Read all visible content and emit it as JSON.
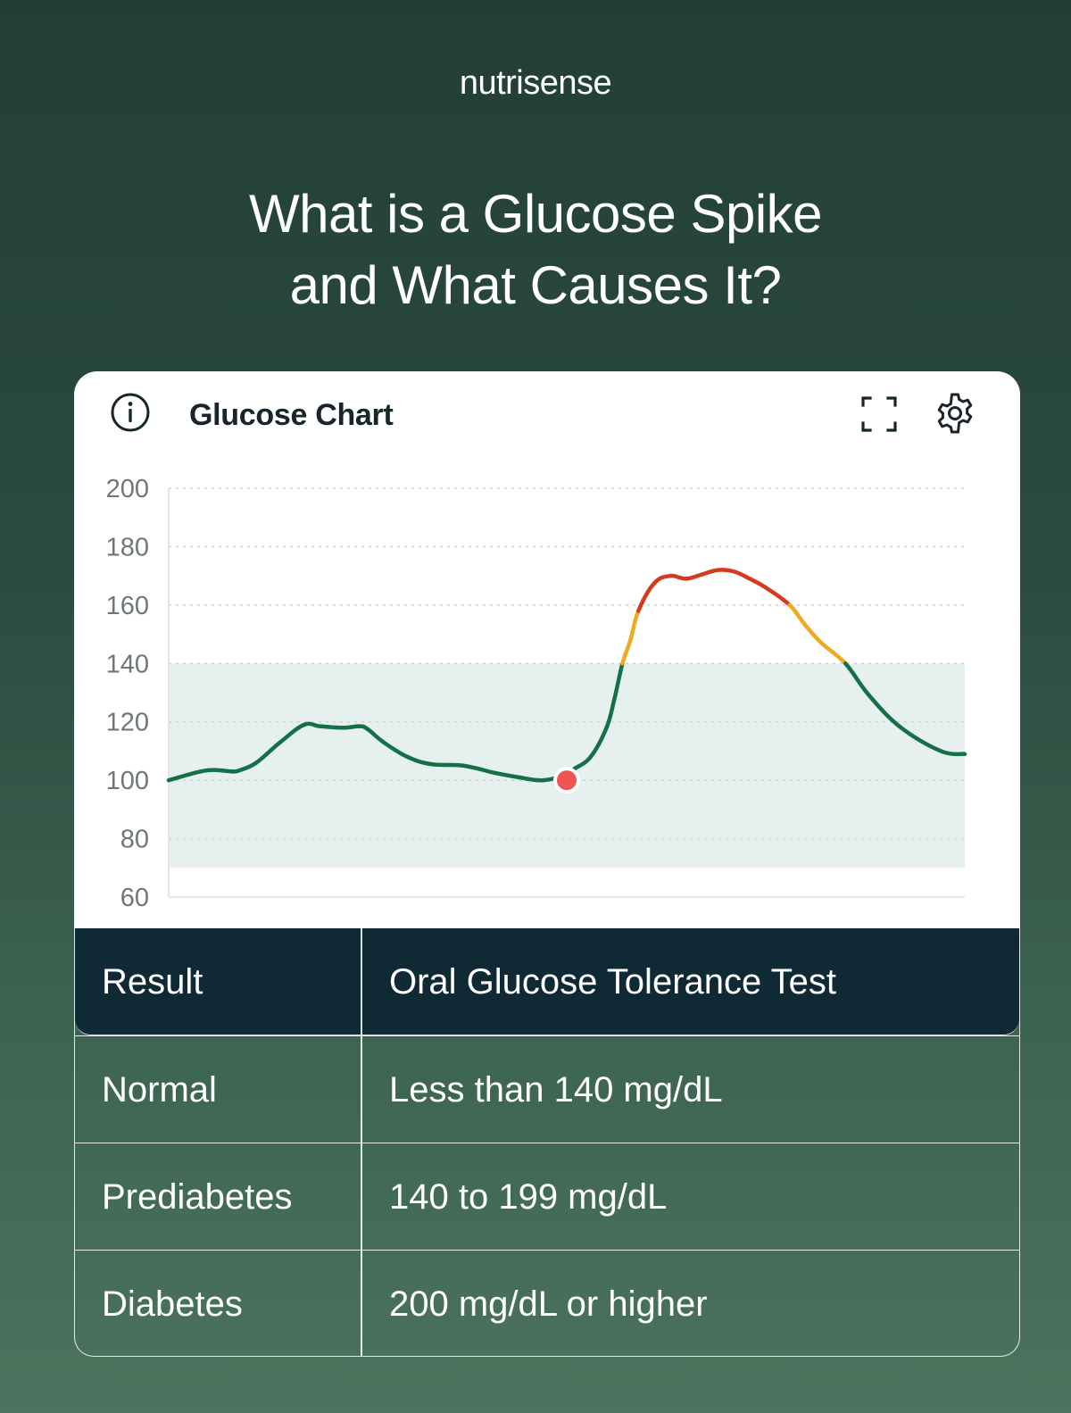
{
  "brand": "nutrisense",
  "headline": {
    "line1": "What is a Glucose Spike",
    "line2": "and What Causes It?"
  },
  "card": {
    "title": "Glucose Chart",
    "icons": {
      "info": "info-icon",
      "expand": "expand-icon",
      "settings": "gear-icon"
    }
  },
  "chart_data": {
    "type": "line",
    "title": "Glucose Chart",
    "xlabel": "",
    "ylabel": "",
    "ylim": [
      60,
      200
    ],
    "yticks": [
      200,
      180,
      160,
      140,
      120,
      100,
      80,
      60
    ],
    "grid": true,
    "target_range": [
      70,
      140
    ],
    "thresholds": {
      "warning": 140,
      "high": 160
    },
    "colors": {
      "normal": "#137047",
      "warning": "#eeaa23",
      "high": "#d43a20",
      "band": "#e6f0ee",
      "marker": "#ef5552"
    },
    "x": [
      0,
      0.04,
      0.06,
      0.08,
      0.09,
      0.11,
      0.14,
      0.17,
      0.19,
      0.22,
      0.24,
      0.25,
      0.27,
      0.3,
      0.33,
      0.37,
      0.41,
      0.44,
      0.47,
      0.5,
      0.51,
      0.53,
      0.55,
      0.56,
      0.57,
      0.58,
      0.59,
      0.61,
      0.63,
      0.65,
      0.67,
      0.69,
      0.71,
      0.73,
      0.75,
      0.78,
      0.8,
      0.82,
      0.85,
      0.88,
      0.92,
      0.97,
      1.0
    ],
    "values": [
      100,
      103,
      103.5,
      103,
      103.5,
      106,
      113,
      119,
      118.5,
      118,
      118.5,
      117.5,
      113,
      108,
      105.5,
      105,
      102.5,
      101,
      100,
      102,
      104,
      108,
      118,
      128,
      140,
      148,
      158,
      167.5,
      170,
      169,
      170.5,
      172,
      171.5,
      169,
      166,
      160,
      153,
      147,
      140,
      129,
      118,
      110,
      109
    ],
    "marker": {
      "x": 0.5,
      "y": 100
    }
  },
  "table": {
    "headers": [
      "Result",
      "Oral Glucose Tolerance Test"
    ],
    "rows": [
      [
        "Normal",
        "Less than 140 mg/dL"
      ],
      [
        "Prediabetes",
        "140 to 199 mg/dL"
      ],
      [
        "Diabetes",
        "200 mg/dL or higher"
      ]
    ]
  }
}
